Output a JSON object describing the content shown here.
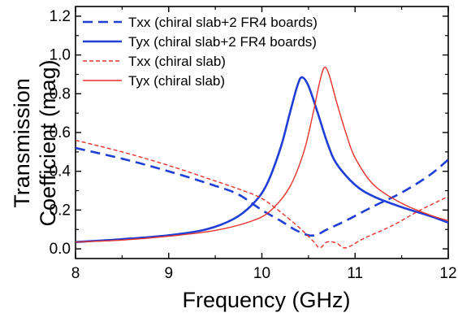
{
  "chart_data": {
    "type": "line",
    "xlabel": "Frequency (GHz)",
    "ylabel_lines": [
      "Transmission",
      "Coefficient (mag)"
    ],
    "xlim": [
      8,
      12
    ],
    "ylim": [
      -0.05,
      1.25
    ],
    "xticks": [
      8,
      9,
      10,
      11,
      12
    ],
    "yticks": [
      0.0,
      0.2,
      0.4,
      0.6,
      0.8,
      1.0,
      1.2
    ],
    "xtick_labels": [
      "8",
      "9",
      "10",
      "11",
      "12"
    ],
    "ytick_labels": [
      "0.0",
      "0.2",
      "0.4",
      "0.6",
      "0.8",
      "1.0",
      "1.2"
    ],
    "grid": false,
    "legend_position": "top-left",
    "series": [
      {
        "name": "Txx (chiral slab+2 FR4 boards)",
        "color": "#1f3fd6",
        "style": "dashed-thick",
        "points": [
          [
            8.0,
            0.52
          ],
          [
            8.5,
            0.465
          ],
          [
            9.0,
            0.4
          ],
          [
            9.5,
            0.325
          ],
          [
            9.75,
            0.28
          ],
          [
            10.0,
            0.2
          ],
          [
            10.2,
            0.145
          ],
          [
            10.35,
            0.1
          ],
          [
            10.5,
            0.07
          ],
          [
            10.6,
            0.075
          ],
          [
            10.7,
            0.1
          ],
          [
            10.9,
            0.145
          ],
          [
            11.2,
            0.22
          ],
          [
            11.5,
            0.29
          ],
          [
            11.8,
            0.38
          ],
          [
            12.0,
            0.46
          ]
        ]
      },
      {
        "name": "Tyx (chiral slab+2 FR4 boards)",
        "color": "#1f3fd6",
        "style": "solid-thick",
        "points": [
          [
            8.0,
            0.035
          ],
          [
            8.5,
            0.05
          ],
          [
            9.0,
            0.07
          ],
          [
            9.4,
            0.1
          ],
          [
            9.7,
            0.155
          ],
          [
            9.9,
            0.23
          ],
          [
            10.05,
            0.33
          ],
          [
            10.2,
            0.52
          ],
          [
            10.3,
            0.7
          ],
          [
            10.38,
            0.84
          ],
          [
            10.43,
            0.885
          ],
          [
            10.5,
            0.84
          ],
          [
            10.6,
            0.7
          ],
          [
            10.7,
            0.55
          ],
          [
            10.8,
            0.44
          ],
          [
            11.0,
            0.33
          ],
          [
            11.2,
            0.27
          ],
          [
            11.5,
            0.215
          ],
          [
            11.8,
            0.17
          ],
          [
            12.0,
            0.135
          ]
        ]
      },
      {
        "name": "Txx (chiral slab)",
        "color": "#e8322a",
        "style": "dashed-thin",
        "points": [
          [
            8.0,
            0.56
          ],
          [
            8.5,
            0.5
          ],
          [
            9.0,
            0.43
          ],
          [
            9.5,
            0.35
          ],
          [
            9.8,
            0.3
          ],
          [
            10.0,
            0.26
          ],
          [
            10.2,
            0.19
          ],
          [
            10.4,
            0.11
          ],
          [
            10.55,
            0.04
          ],
          [
            10.62,
            0.005
          ],
          [
            10.7,
            0.035
          ],
          [
            10.8,
            0.03
          ],
          [
            10.9,
            0.005
          ],
          [
            11.1,
            0.055
          ],
          [
            11.4,
            0.12
          ],
          [
            11.7,
            0.2
          ],
          [
            12.0,
            0.27
          ]
        ]
      },
      {
        "name": "Tyx (chiral slab)",
        "color": "#e8322a",
        "style": "solid-thin",
        "points": [
          [
            8.0,
            0.035
          ],
          [
            8.5,
            0.045
          ],
          [
            9.0,
            0.065
          ],
          [
            9.5,
            0.095
          ],
          [
            9.9,
            0.145
          ],
          [
            10.1,
            0.2
          ],
          [
            10.3,
            0.32
          ],
          [
            10.45,
            0.5
          ],
          [
            10.55,
            0.7
          ],
          [
            10.62,
            0.86
          ],
          [
            10.67,
            0.935
          ],
          [
            10.72,
            0.9
          ],
          [
            10.8,
            0.76
          ],
          [
            10.9,
            0.6
          ],
          [
            11.0,
            0.47
          ],
          [
            11.2,
            0.33
          ],
          [
            11.5,
            0.235
          ],
          [
            11.8,
            0.175
          ],
          [
            12.0,
            0.145
          ]
        ]
      }
    ]
  }
}
